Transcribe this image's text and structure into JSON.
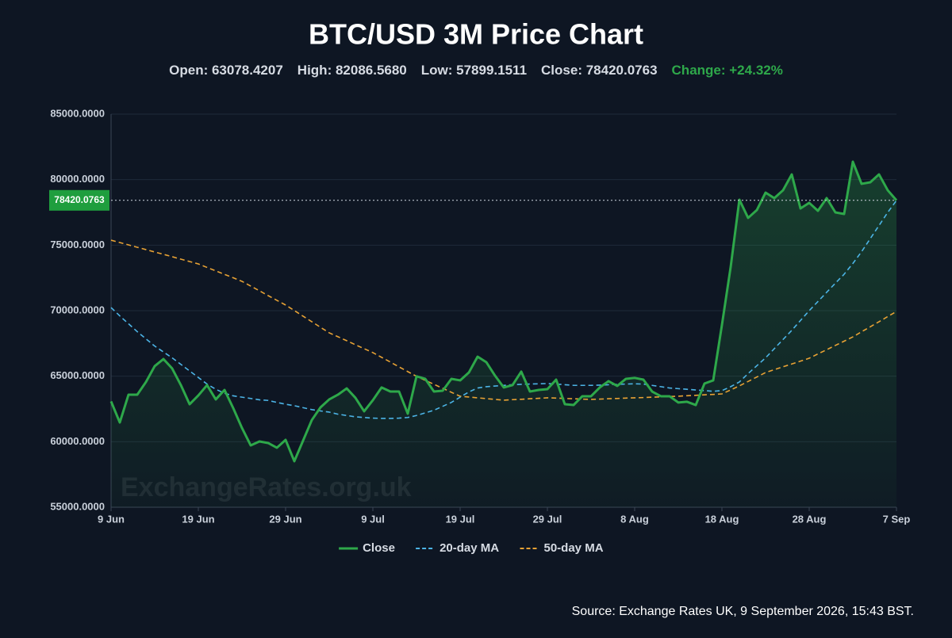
{
  "chart_data": {
    "type": "line",
    "title": "BTC/USD 3M Price Chart",
    "stats": [
      "Open: 63078.4207",
      "High: 82086.5680",
      "Low: 57899.1511",
      "Close: 78420.0763"
    ],
    "change": "Change: +24.32%",
    "last_price_label": "78420.0763",
    "watermark": "ExchangeRates.org.uk",
    "source": "Source: Exchange Rates UK, 9 September 2026, 15:43 BST.",
    "x": [
      "9 Jun",
      "10 Jun",
      "11 Jun",
      "12 Jun",
      "13 Jun",
      "14 Jun",
      "15 Jun",
      "16 Jun",
      "17 Jun",
      "18 Jun",
      "19 Jun",
      "20 Jun",
      "21 Jun",
      "22 Jun",
      "23 Jun",
      "24 Jun",
      "25 Jun",
      "26 Jun",
      "27 Jun",
      "28 Jun",
      "29 Jun",
      "30 Jun",
      "1 Jul",
      "2 Jul",
      "3 Jul",
      "4 Jul",
      "5 Jul",
      "6 Jul",
      "7 Jul",
      "8 Jul",
      "9 Jul",
      "10 Jul",
      "11 Jul",
      "12 Jul",
      "13 Jul",
      "14 Jul",
      "15 Jul",
      "16 Jul",
      "17 Jul",
      "18 Jul",
      "19 Jul",
      "20 Jul",
      "21 Jul",
      "22 Jul",
      "23 Jul",
      "24 Jul",
      "25 Jul",
      "26 Jul",
      "27 Jul",
      "28 Jul",
      "29 Jul",
      "30 Jul",
      "31 Jul",
      "1 Aug",
      "2 Aug",
      "3 Aug",
      "4 Aug",
      "5 Aug",
      "6 Aug",
      "7 Aug",
      "8 Aug",
      "9 Aug",
      "10 Aug",
      "11 Aug",
      "12 Aug",
      "13 Aug",
      "14 Aug",
      "15 Aug",
      "16 Aug",
      "17 Aug",
      "18 Aug",
      "19 Aug",
      "20 Aug",
      "21 Aug",
      "22 Aug",
      "23 Aug",
      "24 Aug",
      "25 Aug",
      "26 Aug",
      "27 Aug",
      "28 Aug",
      "29 Aug",
      "30 Aug",
      "31 Aug",
      "1 Sep",
      "2 Sep",
      "3 Sep",
      "4 Sep",
      "5 Sep",
      "6 Sep",
      "7 Sep"
    ],
    "xticks": [
      "9 Jun",
      "19 Jun",
      "29 Jun",
      "9 Jul",
      "19 Jul",
      "29 Jul",
      "8 Aug",
      "18 Aug",
      "28 Aug",
      "7 Sep"
    ],
    "ylim": [
      55000,
      85000
    ],
    "yticks": [
      {
        "value": 55000,
        "label": "55000.0000"
      },
      {
        "value": 60000,
        "label": "60000.0000"
      },
      {
        "value": 65000,
        "label": "65000.0000"
      },
      {
        "value": 70000,
        "label": "70000.0000"
      },
      {
        "value": 75000,
        "label": "75000.0000"
      },
      {
        "value": 80000,
        "label": "80000.0000"
      },
      {
        "value": 85000,
        "label": "85000.0000"
      }
    ],
    "grid": true,
    "legend": "bottom",
    "series": [
      {
        "name": "Close",
        "color": "#2ea84a",
        "values": [
          63078.4207,
          61470,
          63590,
          63590,
          64560,
          65770,
          66310,
          65590,
          64320,
          62860,
          63530,
          64320,
          63230,
          63950,
          62560,
          61050,
          59720,
          60020,
          59900,
          59540,
          60140,
          58510,
          60080,
          61650,
          62620,
          63230,
          63590,
          64070,
          63350,
          62320,
          63170,
          64140,
          63830,
          63830,
          62140,
          64990,
          64800,
          63830,
          63890,
          64800,
          64680,
          65280,
          66490,
          66070,
          65040,
          64140,
          64320,
          65350,
          63830,
          63950,
          64010,
          64740,
          62860,
          62800,
          63470,
          63470,
          64140,
          64620,
          64260,
          64800,
          64870,
          64740,
          63830,
          63470,
          63470,
          62990,
          63050,
          62800,
          64440,
          64680,
          68910,
          73330,
          78470,
          77080,
          77680,
          79010,
          78590,
          79190,
          80400,
          77800,
          78230,
          77620,
          78590,
          77500,
          77380,
          81370,
          79680,
          79800,
          80400,
          79190,
          78420.0763
        ]
      },
      {
        "name": "20-day MA",
        "color": "#4cb4e6",
        "values": [
          70240,
          69600,
          69000,
          68400,
          67850,
          67300,
          66850,
          66400,
          65900,
          65400,
          64900,
          64400,
          64000,
          63700,
          63500,
          63400,
          63300,
          63200,
          63150,
          63000,
          62860,
          62750,
          62600,
          62450,
          62350,
          62260,
          62100,
          62000,
          61900,
          61850,
          61800,
          61780,
          61780,
          61800,
          61850,
          62000,
          62200,
          62400,
          62700,
          63000,
          63400,
          63800,
          64100,
          64200,
          64250,
          64300,
          64350,
          64380,
          64400,
          64420,
          64440,
          64400,
          64350,
          64300,
          64300,
          64300,
          64320,
          64350,
          64380,
          64400,
          64420,
          64400,
          64300,
          64200,
          64100,
          64050,
          64000,
          63950,
          63900,
          63850,
          63900,
          64200,
          64560,
          65200,
          65800,
          66400,
          67100,
          67800,
          68500,
          69250,
          70000,
          70700,
          71400,
          72100,
          72780,
          73600,
          74500,
          75500,
          76500,
          77500,
          78410
        ]
      },
      {
        "name": "50-day MA",
        "color": "#e8a234",
        "values": [
          75380,
          75200,
          75020,
          74840,
          74660,
          74480,
          74300,
          74120,
          73930,
          73750,
          73570,
          73300,
          73040,
          72770,
          72510,
          72240,
          71880,
          71520,
          71150,
          70790,
          70430,
          70010,
          69580,
          69160,
          68730,
          68310,
          68010,
          67710,
          67400,
          67100,
          66800,
          66440,
          66080,
          65710,
          65350,
          64990,
          64690,
          64380,
          64080,
          63770,
          63470,
          63410,
          63350,
          63290,
          63230,
          63170,
          63210,
          63240,
          63280,
          63310,
          63350,
          63330,
          63300,
          63280,
          63250,
          63230,
          63250,
          63280,
          63300,
          63330,
          63350,
          63370,
          63400,
          63420,
          63450,
          63470,
          63510,
          63540,
          63580,
          63610,
          63650,
          63950,
          64260,
          64600,
          64940,
          65280,
          65500,
          65720,
          65930,
          66150,
          66370,
          66700,
          67020,
          67350,
          67670,
          68000,
          68390,
          68770,
          69160,
          69550,
          69940
        ]
      }
    ]
  }
}
